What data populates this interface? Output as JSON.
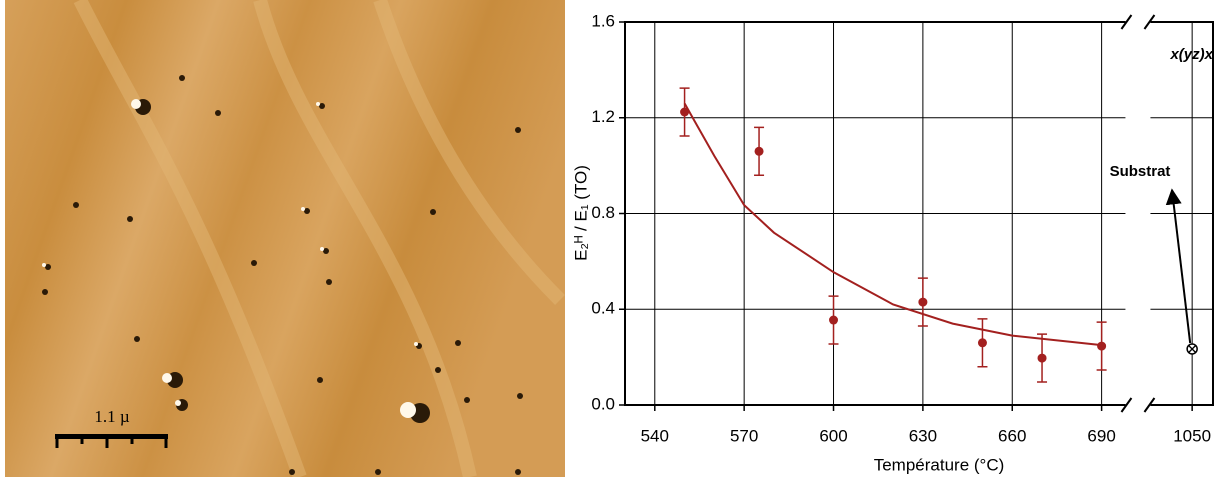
{
  "image": {
    "scale_bar_label": "1.1 µ"
  },
  "chart_data": {
    "type": "scatter",
    "xlabel": "Température (°C)",
    "ylabel": "E₂ᴴ / E₁ (TO)",
    "xlim": [
      530,
      1057
    ],
    "x_break": [
      698,
      1036
    ],
    "xticks": [
      540,
      570,
      600,
      630,
      660,
      690,
      1050
    ],
    "ylim": [
      0,
      1.6
    ],
    "yticks": [
      {
        "value": 0,
        "label": "0.0"
      },
      0.4,
      0.8,
      1.2,
      1.6
    ],
    "grid": true,
    "series": [
      {
        "type": "scatter",
        "color": "#a3201f",
        "x": [
          550,
          575,
          600,
          630,
          650,
          670,
          690
        ],
        "values": [
          1.224,
          1.06,
          0.355,
          0.43,
          0.26,
          0.196,
          0.246
        ],
        "errors": [
          0.1,
          0.1,
          0.1,
          0.1,
          0.1,
          0.1,
          0.1
        ]
      },
      {
        "type": "line",
        "color": "#a3201f",
        "x": [
          550,
          560,
          570,
          580,
          600,
          620,
          640,
          660,
          690
        ],
        "values": [
          1.26,
          1.04,
          0.835,
          0.72,
          0.555,
          0.42,
          0.34,
          0.29,
          0.25
        ]
      },
      {
        "type": "scatter",
        "color": "#000000",
        "marker": "crossed-circle",
        "x": [
          1050
        ],
        "values": [
          0.234
        ]
      }
    ],
    "annotations": [
      "x(yz)x",
      "Substrat"
    ]
  }
}
